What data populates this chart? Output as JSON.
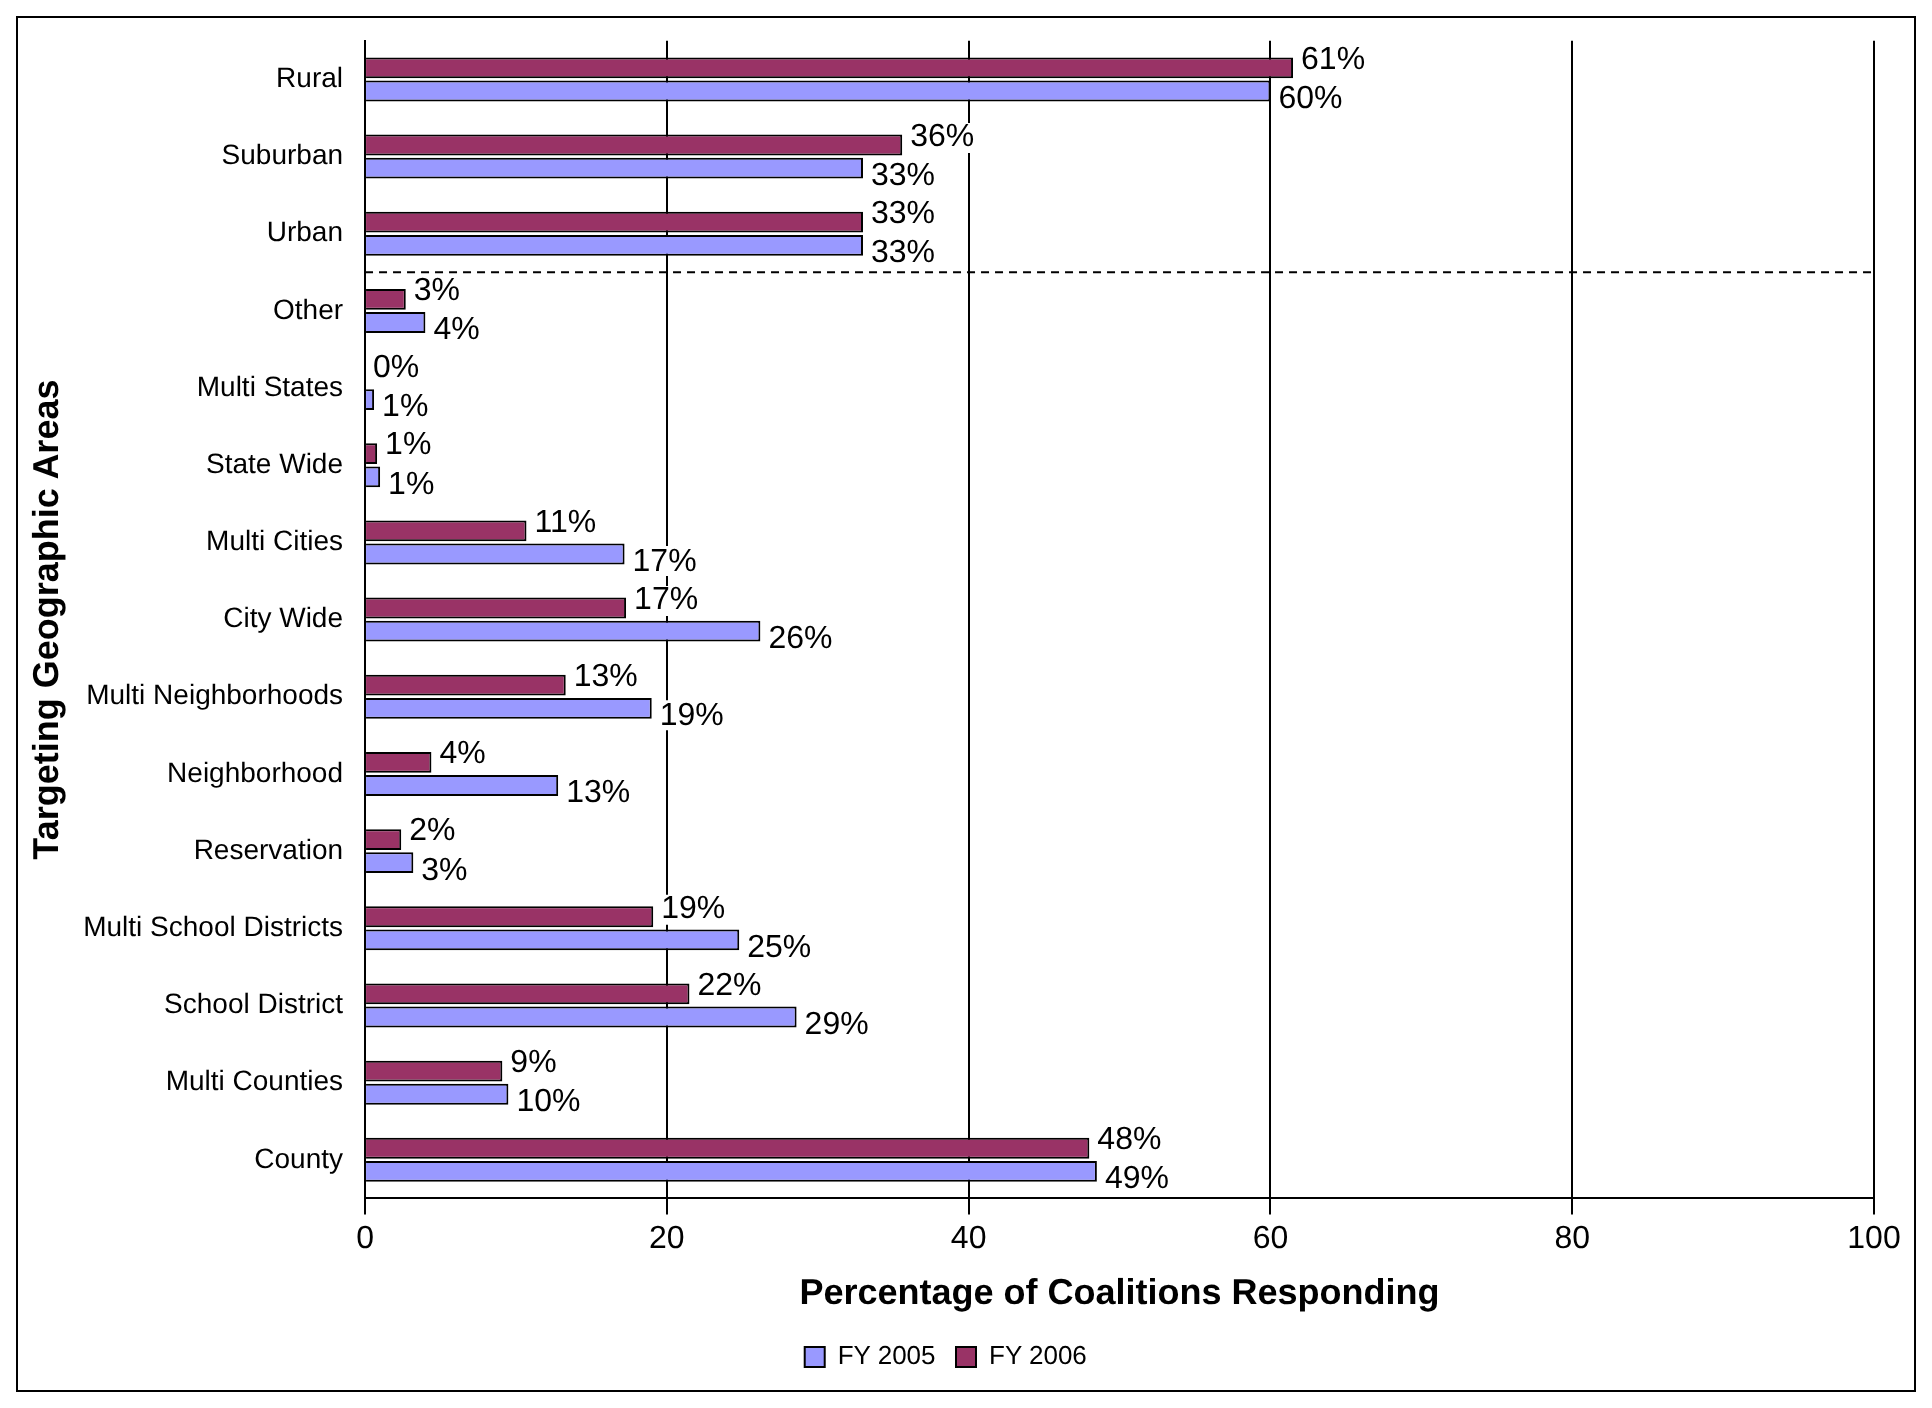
{
  "chart_data": {
    "type": "bar",
    "orientation": "horizontal",
    "xlabel": "Percentage of Coalitions Responding",
    "ylabel": "Targeting Geographic Areas",
    "categories": [
      "Rural",
      "Suburban",
      "Urban",
      "Other",
      "Multi States",
      "State Wide",
      "Multi Cities",
      "City Wide",
      "Multi Neighborhoods",
      "Neighborhood",
      "Reservation",
      "Multi School Districts",
      "School District",
      "Multi Counties",
      "County"
    ],
    "series": [
      {
        "name": "FY 2005",
        "color": "#9999ff",
        "values": [
          60,
          33,
          33,
          4,
          0.6,
          1,
          17.2,
          26.2,
          19,
          12.8,
          3.2,
          24.8,
          28.6,
          9.5,
          48.5
        ],
        "value_labels": [
          "60%",
          "33%",
          "33%",
          "4%",
          "1%",
          "1%",
          "17%",
          "26%",
          "19%",
          "13%",
          "3%",
          "25%",
          "29%",
          "10%",
          "49%"
        ]
      },
      {
        "name": "FY 2006",
        "color": "#993366",
        "values": [
          61.5,
          35.6,
          33,
          2.7,
          0,
          0.8,
          10.7,
          17.3,
          13.3,
          4.4,
          2.4,
          19.1,
          21.5,
          9.1,
          48
        ],
        "value_labels": [
          "61%",
          "36%",
          "33%",
          "3%",
          "0%",
          "1%",
          "11%",
          "17%",
          "13%",
          "4%",
          "2%",
          "19%",
          "22%",
          "9%",
          "48%"
        ]
      }
    ],
    "xlim": [
      0,
      100
    ],
    "xticks": [
      0,
      20,
      40,
      60,
      80,
      100
    ],
    "grid": "x",
    "legend": "bottom",
    "ref_lines": [
      {
        "axis": "y",
        "value": "Urban",
        "line_style": "dashed",
        "color": "#000000"
      }
    ]
  }
}
